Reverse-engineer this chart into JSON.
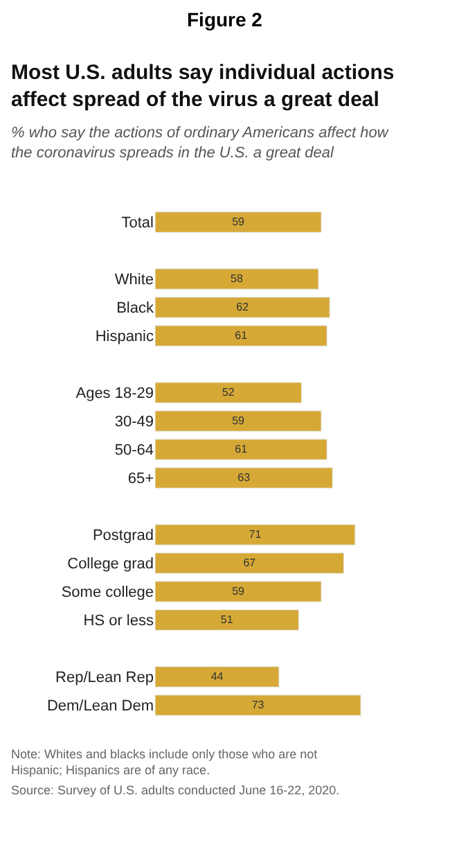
{
  "chart_data": {
    "type": "bar",
    "orientation": "horizontal",
    "title": "Most U.S. adults say individual actions affect spread of the virus a great deal",
    "subtitle": "% who say the actions of ordinary Americans affect how the coronavirus spreads in the U.S. a great deal",
    "categories": [
      "Total",
      null,
      "White",
      "Black",
      "Hispanic",
      null,
      "Ages 18-29",
      "30-49",
      "50-64",
      "65+",
      null,
      "Postgrad",
      "College grad",
      "Some college",
      "HS or less",
      null,
      "Rep/Lean Rep",
      "Dem/Lean Dem"
    ],
    "values": [
      59,
      null,
      58,
      62,
      61,
      null,
      52,
      59,
      61,
      63,
      null,
      71,
      67,
      59,
      51,
      null,
      44,
      73
    ],
    "color": "#d6a936",
    "data_labels": true,
    "annotations": [
      "Figure 2",
      "Note: Whites and blacks include only those who are not Hispanic; Hispanics are of any race.",
      "Source: Survey of U.S. adults conducted June 16-22, 2020."
    ]
  }
}
